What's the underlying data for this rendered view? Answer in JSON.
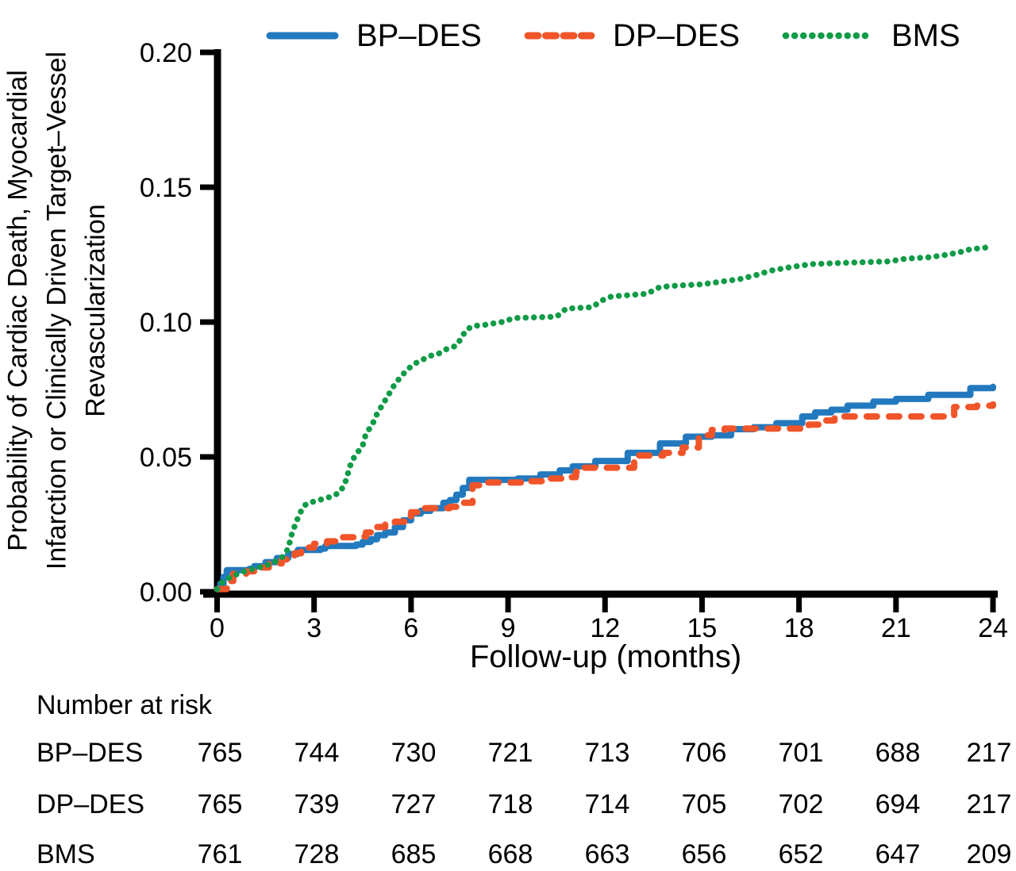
{
  "figure": {
    "xlabel": "Follow-up (months)",
    "ylabel_lines": [
      "Probability of Cardiac Death, Myocardial",
      "Infarction or Clinically Driven Target–Vessel",
      "Revascularization"
    ]
  },
  "legend": {
    "items": [
      {
        "label": "BP–DES",
        "color": "#2379BE",
        "style": "solid"
      },
      {
        "label": "DP–DES",
        "color": "#F0552A",
        "style": "dashed"
      },
      {
        "label": "BMS",
        "color": "#109B47",
        "style": "dotted"
      }
    ]
  },
  "chart_data": {
    "type": "line",
    "title": "",
    "xlabel": "Follow-up (months)",
    "ylabel": "Probability of Cardiac Death, Myocardial Infarction or Clinically Driven Target–Vessel Revascularization",
    "xlim": [
      0,
      24
    ],
    "ylim": [
      0,
      0.2
    ],
    "x_ticks": [
      0,
      3,
      6,
      9,
      12,
      15,
      18,
      21,
      24
    ],
    "y_ticks": [
      0.0,
      0.05,
      0.1,
      0.15,
      0.2
    ],
    "y_tick_labels": [
      "0.00",
      "0.05",
      "0.10",
      "0.15",
      "0.20"
    ],
    "grid": false,
    "legend_position": "top",
    "series": [
      {
        "name": "BP–DES",
        "color": "#2379BE",
        "style": "solid",
        "interpolation": "step",
        "points": [
          [
            0,
            0.001
          ],
          [
            0.1,
            0.003
          ],
          [
            0.2,
            0.0055
          ],
          [
            0.3,
            0.008
          ],
          [
            1.0,
            0.0085
          ],
          [
            1.15,
            0.0095
          ],
          [
            1.5,
            0.011
          ],
          [
            1.85,
            0.0125
          ],
          [
            2.2,
            0.014
          ],
          [
            2.5,
            0.0155
          ],
          [
            3.2,
            0.016
          ],
          [
            3.35,
            0.017
          ],
          [
            4.3,
            0.0175
          ],
          [
            4.5,
            0.0185
          ],
          [
            4.75,
            0.0195
          ],
          [
            4.95,
            0.021
          ],
          [
            5.2,
            0.022
          ],
          [
            5.5,
            0.024
          ],
          [
            5.75,
            0.0265
          ],
          [
            6.0,
            0.029
          ],
          [
            6.3,
            0.03
          ],
          [
            6.6,
            0.031
          ],
          [
            7.0,
            0.033
          ],
          [
            7.2,
            0.034
          ],
          [
            7.4,
            0.036
          ],
          [
            7.6,
            0.0385
          ],
          [
            7.8,
            0.0415
          ],
          [
            9.3,
            0.042
          ],
          [
            10.0,
            0.0435
          ],
          [
            10.6,
            0.045
          ],
          [
            11.0,
            0.0465
          ],
          [
            11.7,
            0.0485
          ],
          [
            12.7,
            0.0515
          ],
          [
            13.7,
            0.055
          ],
          [
            14.5,
            0.0575
          ],
          [
            15.3,
            0.058
          ],
          [
            15.9,
            0.0603
          ],
          [
            16.6,
            0.061
          ],
          [
            17.3,
            0.0625
          ],
          [
            18.1,
            0.065
          ],
          [
            18.5,
            0.0665
          ],
          [
            19.0,
            0.0675
          ],
          [
            19.5,
            0.069
          ],
          [
            20.3,
            0.0705
          ],
          [
            21.0,
            0.0715
          ],
          [
            22.0,
            0.073
          ],
          [
            23.3,
            0.0755
          ],
          [
            24,
            0.076
          ]
        ]
      },
      {
        "name": "DP–DES",
        "color": "#F0552A",
        "style": "dashed",
        "interpolation": "step",
        "points": [
          [
            0,
            0.001
          ],
          [
            0.3,
            0.004
          ],
          [
            0.5,
            0.0067
          ],
          [
            0.9,
            0.0076
          ],
          [
            1.2,
            0.009
          ],
          [
            1.6,
            0.0105
          ],
          [
            2.0,
            0.012
          ],
          [
            2.2,
            0.0135
          ],
          [
            2.4,
            0.0143
          ],
          [
            2.6,
            0.0164
          ],
          [
            3.0,
            0.0178
          ],
          [
            3.4,
            0.0187
          ],
          [
            3.7,
            0.0202
          ],
          [
            4.3,
            0.0205
          ],
          [
            4.6,
            0.022
          ],
          [
            4.9,
            0.024
          ],
          [
            5.2,
            0.025
          ],
          [
            5.5,
            0.026
          ],
          [
            5.8,
            0.028
          ],
          [
            6.0,
            0.0295
          ],
          [
            6.3,
            0.031
          ],
          [
            7.2,
            0.0315
          ],
          [
            7.5,
            0.033
          ],
          [
            7.9,
            0.0395
          ],
          [
            8.3,
            0.0405
          ],
          [
            9.5,
            0.041
          ],
          [
            10.1,
            0.042
          ],
          [
            10.9,
            0.0425
          ],
          [
            11.1,
            0.0445
          ],
          [
            11.3,
            0.046
          ],
          [
            12.6,
            0.046
          ],
          [
            12.9,
            0.0505
          ],
          [
            13.8,
            0.0515
          ],
          [
            14.4,
            0.0535
          ],
          [
            14.9,
            0.058
          ],
          [
            15.3,
            0.06
          ],
          [
            15.7,
            0.0605
          ],
          [
            18.0,
            0.0605
          ],
          [
            18.3,
            0.062
          ],
          [
            18.6,
            0.0635
          ],
          [
            19.1,
            0.065
          ],
          [
            22.6,
            0.065
          ],
          [
            22.8,
            0.0685
          ],
          [
            23.5,
            0.069
          ],
          [
            24,
            0.0695
          ]
        ]
      },
      {
        "name": "BMS",
        "color": "#109B47",
        "style": "dotted",
        "interpolation": "linear",
        "points": [
          [
            0,
            0.001
          ],
          [
            0.2,
            0.004
          ],
          [
            0.5,
            0.006
          ],
          [
            0.9,
            0.0078
          ],
          [
            1.3,
            0.009
          ],
          [
            1.7,
            0.0105
          ],
          [
            2.0,
            0.0126
          ],
          [
            2.2,
            0.016
          ],
          [
            2.3,
            0.021
          ],
          [
            2.45,
            0.026
          ],
          [
            2.6,
            0.03
          ],
          [
            2.75,
            0.0325
          ],
          [
            3.0,
            0.0335
          ],
          [
            3.3,
            0.0345
          ],
          [
            3.6,
            0.0355
          ],
          [
            3.8,
            0.037
          ],
          [
            3.95,
            0.04
          ],
          [
            4.05,
            0.044
          ],
          [
            4.15,
            0.048
          ],
          [
            4.3,
            0.051
          ],
          [
            4.5,
            0.054
          ],
          [
            4.6,
            0.0585
          ],
          [
            4.8,
            0.062
          ],
          [
            4.95,
            0.066
          ],
          [
            5.1,
            0.069
          ],
          [
            5.3,
            0.073
          ],
          [
            5.5,
            0.077
          ],
          [
            5.7,
            0.08
          ],
          [
            5.9,
            0.0825
          ],
          [
            6.1,
            0.0845
          ],
          [
            6.35,
            0.086
          ],
          [
            6.6,
            0.0875
          ],
          [
            6.9,
            0.0885
          ],
          [
            7.1,
            0.09
          ],
          [
            7.4,
            0.0912
          ],
          [
            7.55,
            0.094
          ],
          [
            7.7,
            0.097
          ],
          [
            7.9,
            0.0985
          ],
          [
            8.3,
            0.099
          ],
          [
            8.8,
            0.1
          ],
          [
            9.2,
            0.1015
          ],
          [
            10.5,
            0.102
          ],
          [
            10.8,
            0.105
          ],
          [
            11.6,
            0.1055
          ],
          [
            11.9,
            0.108
          ],
          [
            12.2,
            0.1095
          ],
          [
            13.3,
            0.1105
          ],
          [
            13.7,
            0.113
          ],
          [
            14.2,
            0.1135
          ],
          [
            15.0,
            0.114
          ],
          [
            15.6,
            0.115
          ],
          [
            16.2,
            0.116
          ],
          [
            16.7,
            0.1175
          ],
          [
            17.1,
            0.119
          ],
          [
            17.8,
            0.1205
          ],
          [
            18.4,
            0.1215
          ],
          [
            19.5,
            0.122
          ],
          [
            20.8,
            0.1225
          ],
          [
            21.3,
            0.1235
          ],
          [
            22.0,
            0.124
          ],
          [
            22.6,
            0.125
          ],
          [
            23.0,
            0.126
          ],
          [
            23.3,
            0.127
          ],
          [
            23.7,
            0.1275
          ],
          [
            24,
            0.128
          ]
        ]
      }
    ]
  },
  "risk_table": {
    "title": "Number at risk",
    "months": [
      0,
      3,
      6,
      9,
      12,
      15,
      18,
      21,
      24
    ],
    "rows": [
      {
        "label": "BP–DES",
        "values": [
          "765",
          "744",
          "730",
          "721",
          "713",
          "706",
          "701",
          "688",
          "217"
        ]
      },
      {
        "label": "DP–DES",
        "values": [
          "765",
          "739",
          "727",
          "718",
          "714",
          "705",
          "702",
          "694",
          "217"
        ]
      },
      {
        "label": "BMS",
        "values": [
          "761",
          "728",
          "685",
          "668",
          "663",
          "656",
          "652",
          "647",
          "209"
        ]
      }
    ]
  }
}
